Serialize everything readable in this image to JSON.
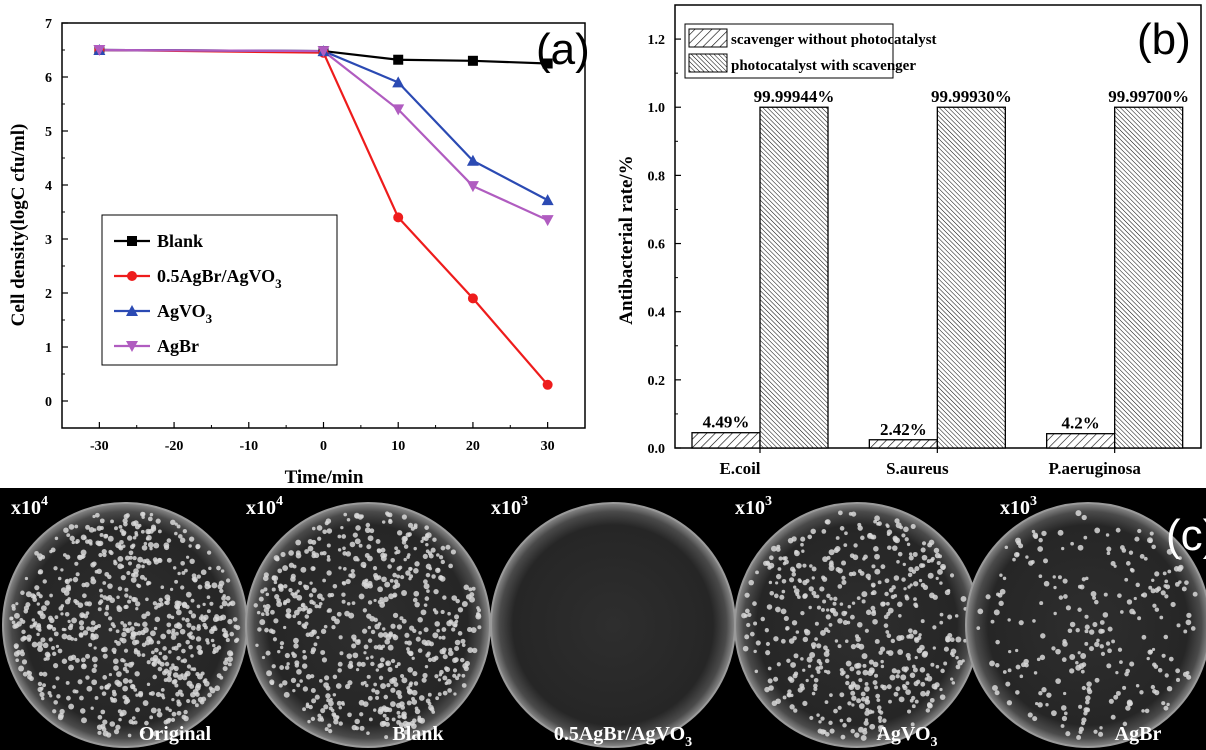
{
  "chart_data": [
    {
      "panel_label": "(a)",
      "type": "line",
      "xlabel": "Time/min",
      "ylabel": "Cell density(logC cfu/ml)",
      "xlim": [
        -35,
        35
      ],
      "ylim": [
        -0.5,
        7
      ],
      "xticks": [
        "-30",
        "-20",
        "-10",
        "0",
        "10",
        "20",
        "30"
      ],
      "yticks": [
        "0",
        "1",
        "2",
        "3",
        "4",
        "5",
        "6",
        "7"
      ],
      "legend_position": "lower-left",
      "series": [
        {
          "name": "Blank",
          "name_sub": "",
          "color": "#000000",
          "marker": "square",
          "x": [
            -30,
            0,
            10,
            20,
            30
          ],
          "y": [
            6.5,
            6.48,
            6.32,
            6.3,
            6.25
          ]
        },
        {
          "name": "0.5AgBr/AgVO",
          "name_sub": "3",
          "color": "#ee1c1c",
          "marker": "circle",
          "x": [
            -30,
            0,
            10,
            20,
            30
          ],
          "y": [
            6.5,
            6.45,
            3.4,
            1.9,
            0.3
          ]
        },
        {
          "name": "AgVO",
          "name_sub": "3",
          "color": "#2b4ab3",
          "marker": "triangle-up",
          "x": [
            -30,
            0,
            10,
            20,
            30
          ],
          "y": [
            6.5,
            6.48,
            5.9,
            4.45,
            3.72
          ]
        },
        {
          "name": "AgBr",
          "name_sub": "",
          "color": "#b05cc0",
          "marker": "triangle-down",
          "x": [
            -30,
            0,
            10,
            20,
            30
          ],
          "y": [
            6.5,
            6.48,
            5.4,
            3.98,
            3.35
          ]
        }
      ]
    },
    {
      "panel_label": "(b)",
      "type": "bar",
      "ylabel": "Antibacterial rate/%",
      "ylim": [
        0,
        1.3
      ],
      "yticks": [
        "0.0",
        "0.2",
        "0.4",
        "0.6",
        "0.8",
        "1.0",
        "1.2"
      ],
      "categories": [
        "E.coil",
        "S.aureus",
        "P.aeruginosa"
      ],
      "legend_position": "top-left",
      "series": [
        {
          "name": "scavenger without photocatalyst",
          "pattern": "hatch-sparse",
          "values": [
            0.0449,
            0.0242,
            0.042
          ],
          "labels": [
            "4.49%",
            "2.42%",
            "4.2%"
          ]
        },
        {
          "name": "photocatalyst with scavenger",
          "pattern": "hatch-dense",
          "values": [
            1.0,
            1.0,
            1.0
          ],
          "labels": [
            "99.99944%",
            "99.99930%",
            "99.99700%"
          ]
        }
      ]
    }
  ],
  "photos": {
    "panel_label": "(c)",
    "plates": [
      {
        "label": "Original",
        "label_sub": "",
        "dilution_base": "x10",
        "dilution_exp": "4",
        "colony_density": 720
      },
      {
        "label": "Blank",
        "label_sub": "",
        "dilution_base": "x10",
        "dilution_exp": "4",
        "colony_density": 620
      },
      {
        "label": "0.5AgBr/AgVO",
        "label_sub": "3",
        "dilution_base": "x10",
        "dilution_exp": "3",
        "colony_density": 0
      },
      {
        "label": "AgVO",
        "label_sub": "3",
        "dilution_base": "x10",
        "dilution_exp": "3",
        "colony_density": 520
      },
      {
        "label": "AgBr",
        "label_sub": "",
        "dilution_base": "x10",
        "dilution_exp": "3",
        "colony_density": 260
      }
    ]
  }
}
